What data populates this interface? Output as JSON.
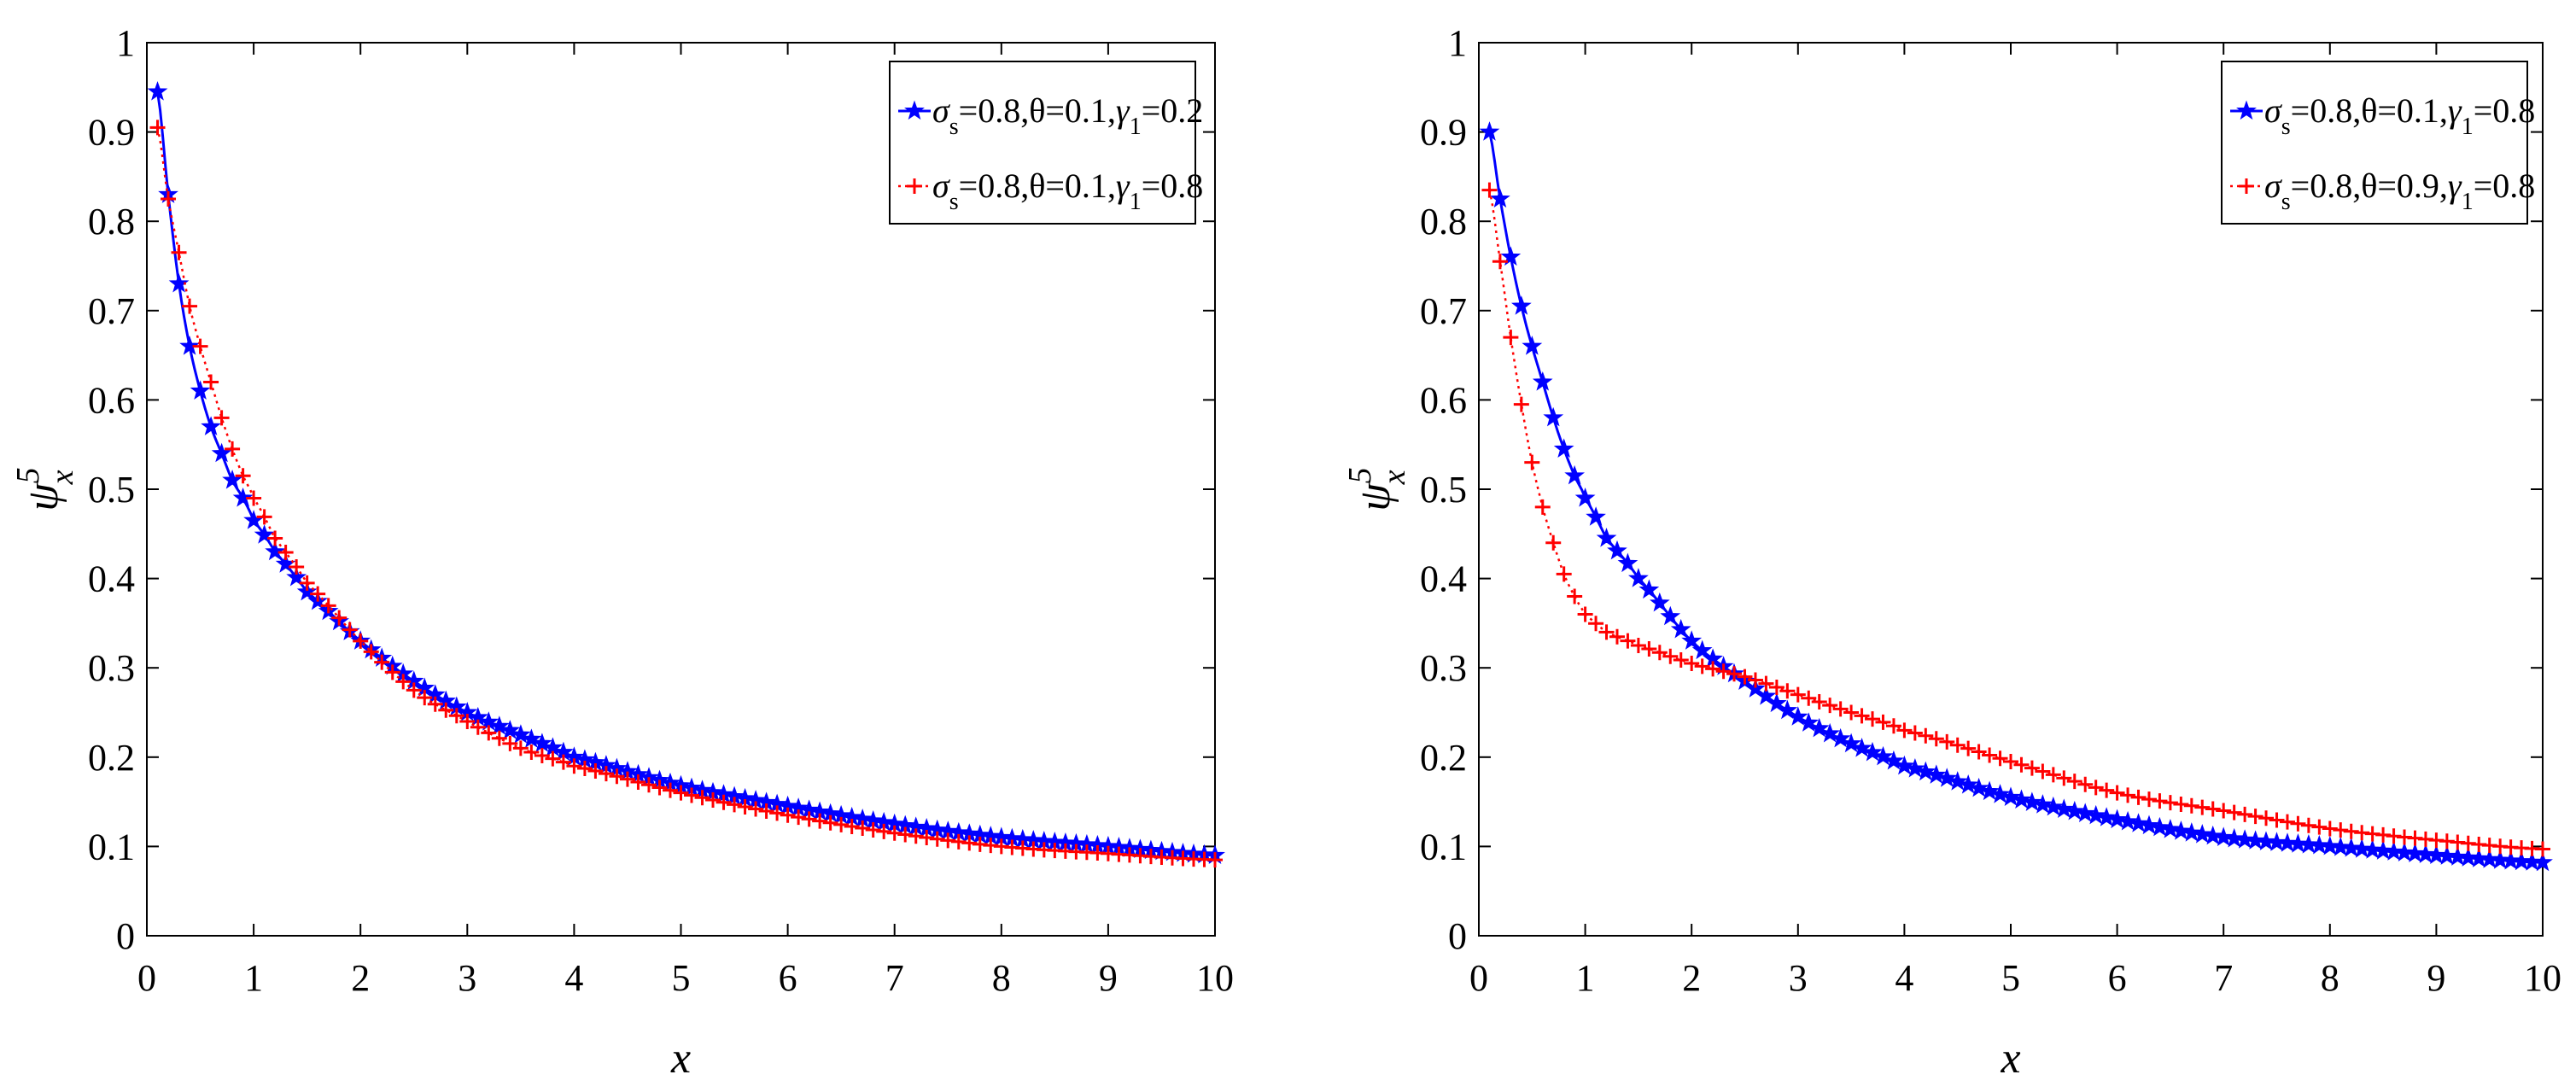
{
  "chart_data": [
    {
      "type": "line",
      "xlabel": "x",
      "ylabel": "ψ",
      "ylabel_superscript": "5",
      "ylabel_subscript": "x",
      "xlim": [
        0,
        10
      ],
      "ylim": [
        0,
        1
      ],
      "xticks": [
        "0",
        "1",
        "2",
        "3",
        "4",
        "5",
        "6",
        "7",
        "8",
        "9",
        "10"
      ],
      "yticks": [
        "0",
        "0.1",
        "0.2",
        "0.3",
        "0.4",
        "0.5",
        "0.6",
        "0.7",
        "0.8",
        "0.9",
        "1"
      ],
      "legend_position": "top-right",
      "series": [
        {
          "name": "σs=0.8,θ=0.1,γ1=0.2",
          "legend": {
            "s1": "σ",
            "sub1": "s",
            "t1": "=0.8,θ=0.1,",
            "s2": "γ",
            "sub2": "1",
            "t2": "=0.2"
          },
          "color": "#0000ff",
          "marker": "star",
          "line_style": "solid",
          "x": [
            0.1,
            0.2,
            0.3,
            0.4,
            0.5,
            0.6,
            0.7,
            0.8,
            0.9,
            1.0,
            1.2,
            1.5,
            2.0,
            2.5,
            3.0,
            3.5,
            4.0,
            5.0,
            6.0,
            7.0,
            8.0,
            9.0,
            10.0
          ],
          "values": [
            0.945,
            0.83,
            0.73,
            0.66,
            0.61,
            0.57,
            0.54,
            0.51,
            0.49,
            0.465,
            0.43,
            0.385,
            0.33,
            0.285,
            0.25,
            0.225,
            0.2,
            0.168,
            0.145,
            0.125,
            0.11,
            0.1,
            0.09
          ]
        },
        {
          "name": "σs=0.8,θ=0.1,γ1=0.8",
          "legend": {
            "s1": "σ",
            "sub1": "s",
            "t1": "=0.8,θ=0.1,",
            "s2": "γ",
            "sub2": "1",
            "t2": "=0.8"
          },
          "color": "#ff0000",
          "marker": "plus",
          "line_style": "dotted",
          "x": [
            0.1,
            0.2,
            0.3,
            0.4,
            0.5,
            0.6,
            0.7,
            0.8,
            0.9,
            1.0,
            1.2,
            1.5,
            2.0,
            2.5,
            3.0,
            3.5,
            4.0,
            5.0,
            6.0,
            7.0,
            8.0,
            9.0,
            10.0
          ],
          "values": [
            0.905,
            0.825,
            0.765,
            0.705,
            0.66,
            0.62,
            0.58,
            0.545,
            0.515,
            0.49,
            0.445,
            0.395,
            0.33,
            0.275,
            0.24,
            0.21,
            0.19,
            0.16,
            0.135,
            0.115,
            0.1,
            0.092,
            0.085
          ]
        }
      ]
    },
    {
      "type": "line",
      "xlabel": "x",
      "ylabel": "ψ",
      "ylabel_superscript": "5",
      "ylabel_subscript": "x",
      "xlim": [
        0,
        10
      ],
      "ylim": [
        0,
        1
      ],
      "xticks": [
        "0",
        "1",
        "2",
        "3",
        "4",
        "5",
        "6",
        "7",
        "8",
        "9",
        "10"
      ],
      "yticks": [
        "0",
        "0.1",
        "0.2",
        "0.3",
        "0.4",
        "0.5",
        "0.6",
        "0.7",
        "0.8",
        "0.9",
        "1"
      ],
      "legend_position": "top-right",
      "series": [
        {
          "name": "σs=0.8,θ=0.1,γ1=0.8",
          "legend": {
            "s1": "σ",
            "sub1": "s",
            "t1": "=0.8,θ=0.1,",
            "s2": "γ",
            "sub2": "1",
            "t2": "=0.8"
          },
          "color": "#0000ff",
          "marker": "star",
          "line_style": "solid",
          "x": [
            0.1,
            0.2,
            0.3,
            0.4,
            0.5,
            0.6,
            0.7,
            0.8,
            0.9,
            1.0,
            1.2,
            1.5,
            2.0,
            2.5,
            3.0,
            3.5,
            4.0,
            5.0,
            6.0,
            7.0,
            8.0,
            9.0,
            10.0
          ],
          "values": [
            0.9,
            0.825,
            0.76,
            0.705,
            0.66,
            0.62,
            0.58,
            0.545,
            0.515,
            0.49,
            0.445,
            0.4,
            0.33,
            0.285,
            0.245,
            0.215,
            0.19,
            0.155,
            0.13,
            0.11,
            0.1,
            0.09,
            0.082
          ]
        },
        {
          "name": "σs=0.8,θ=0.9,γ1=0.8",
          "legend": {
            "s1": "σ",
            "sub1": "s",
            "t1": "=0.8,θ=0.9,",
            "s2": "γ",
            "sub2": "1",
            "t2": "=0.8"
          },
          "color": "#ff0000",
          "marker": "plus",
          "line_style": "dotted",
          "x": [
            0.1,
            0.2,
            0.3,
            0.4,
            0.5,
            0.6,
            0.7,
            0.8,
            0.9,
            1.0,
            1.2,
            1.5,
            2.0,
            2.5,
            3.0,
            3.5,
            4.0,
            5.0,
            6.0,
            7.0,
            8.0,
            9.0,
            10.0
          ],
          "values": [
            0.835,
            0.755,
            0.67,
            0.595,
            0.53,
            0.48,
            0.44,
            0.405,
            0.38,
            0.36,
            0.34,
            0.325,
            0.305,
            0.29,
            0.27,
            0.25,
            0.23,
            0.195,
            0.16,
            0.14,
            0.12,
            0.107,
            0.097
          ]
        }
      ]
    }
  ]
}
